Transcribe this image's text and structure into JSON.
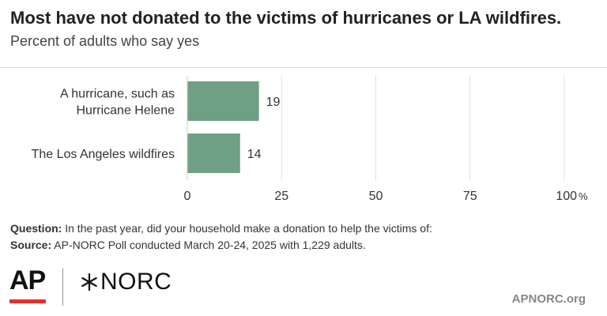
{
  "title": "Most have not donated to the victims of hurricanes or LA wildfires.",
  "subtitle": "Percent of adults who say yes",
  "colors": {
    "bar": "#6f9f84",
    "grid": "#dddddd",
    "accent_red": "#e4312b"
  },
  "chart_data": {
    "type": "bar",
    "orientation": "horizontal",
    "categories": [
      [
        "A hurricane, such as",
        "Hurricane Helene"
      ],
      [
        "The Los Angeles wildfires"
      ]
    ],
    "values": [
      19,
      14
    ],
    "value_labels": [
      "19",
      "14"
    ],
    "xlim": [
      0,
      100
    ],
    "xticks": [
      0,
      25,
      50,
      75,
      100
    ],
    "xtick_labels": [
      "0",
      "25",
      "50",
      "75",
      "100"
    ],
    "x_unit": "%",
    "grid": true
  },
  "footnote": {
    "question_label": "Question:",
    "question_text": "In the past year, did your household make a donation to help the victims of:",
    "source_label": "Source:",
    "source_text": "AP-NORC Poll conducted March 20-24, 2025 with 1,229 adults."
  },
  "logos": {
    "ap": "AP",
    "norc": "NORC",
    "site": "APNORC.org"
  }
}
